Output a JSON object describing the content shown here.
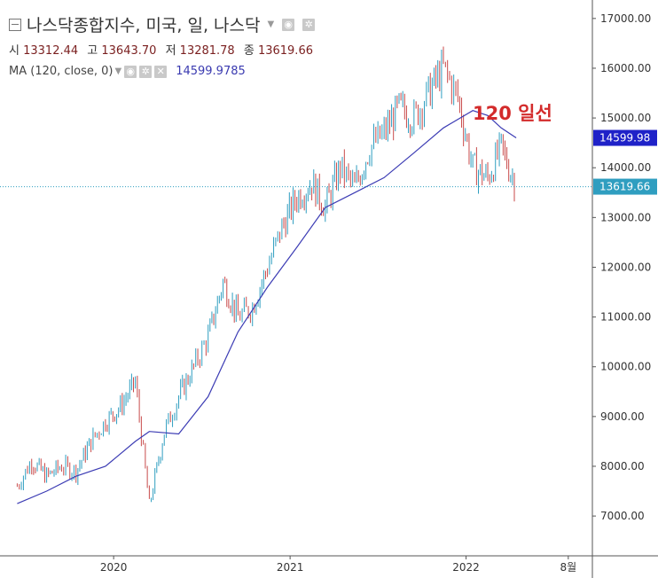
{
  "header": {
    "title": "나스닥종합지수, 미국, 일, 나스닥",
    "ohlc": [
      {
        "label": "시",
        "value": "13312.44"
      },
      {
        "label": "고",
        "value": "13643.70"
      },
      {
        "label": "저",
        "value": "13281.78"
      },
      {
        "label": "종",
        "value": "13619.66"
      }
    ],
    "ma_label": "MA (120, close, 0)",
    "ma_value": "14599.9785"
  },
  "annotation": "120 일선",
  "price_tags": {
    "ma": "14599.98",
    "close": "13619.66"
  },
  "colors": {
    "ma_line": "#3c3cb4",
    "up": "#2f9ec0",
    "down": "#c84a4a",
    "annotation": "#d32b2b",
    "ma_tag": "#1f22c8",
    "close_tag": "#2f9ec0"
  },
  "chart_data": {
    "type": "line",
    "title": "나스닥종합지수, 미국, 일, 나스닥",
    "ylim": [
      6200,
      17300
    ],
    "yticks": [
      "7000.00",
      "8000.00",
      "9000.00",
      "10000.00",
      "11000.00",
      "12000.00",
      "13000.00",
      "14000.00",
      "15000.00",
      "16000.00",
      "17000.00"
    ],
    "xticks": [
      "2020",
      "2021",
      "2022",
      "8월"
    ],
    "series": [
      {
        "name": "나스닥종합지수",
        "x": [
          "2019-06",
          "2019-07",
          "2019-08",
          "2019-09",
          "2019-10",
          "2019-11",
          "2019-12",
          "2020-01",
          "2020-02",
          "2020-03",
          "2020-04",
          "2020-05",
          "2020-06",
          "2020-07",
          "2020-08",
          "2020-09",
          "2020-10",
          "2020-11",
          "2020-12",
          "2021-01",
          "2021-02",
          "2021-03",
          "2021-04",
          "2021-05",
          "2021-06",
          "2021-07",
          "2021-08",
          "2021-09",
          "2021-10",
          "2021-11",
          "2021-12",
          "2022-01",
          "2022-02",
          "2022-03",
          "2022-04"
        ],
        "values": [
          7600,
          8100,
          7800,
          8000,
          7900,
          8500,
          8900,
          9200,
          9700,
          7200,
          8700,
          9400,
          10000,
          10600,
          11700,
          11000,
          11200,
          12000,
          12800,
          13400,
          13700,
          13200,
          14000,
          13600,
          14400,
          14700,
          15200,
          15000,
          15500,
          16000,
          15400,
          14000,
          13800,
          14400,
          13620
        ]
      },
      {
        "name": "MA (120, close, 0)",
        "x": [
          "2019-06",
          "2019-08",
          "2019-10",
          "2019-12",
          "2020-02",
          "2020-03",
          "2020-05",
          "2020-07",
          "2020-09",
          "2020-11",
          "2021-01",
          "2021-03",
          "2021-05",
          "2021-07",
          "2021-09",
          "2021-11",
          "2022-01",
          "2022-02",
          "2022-03",
          "2022-04"
        ],
        "values": [
          7250,
          7500,
          7800,
          8000,
          8500,
          8700,
          8650,
          9400,
          10700,
          11600,
          12400,
          13200,
          13500,
          13800,
          14300,
          14800,
          15150,
          15050,
          14800,
          14600
        ]
      }
    ]
  }
}
